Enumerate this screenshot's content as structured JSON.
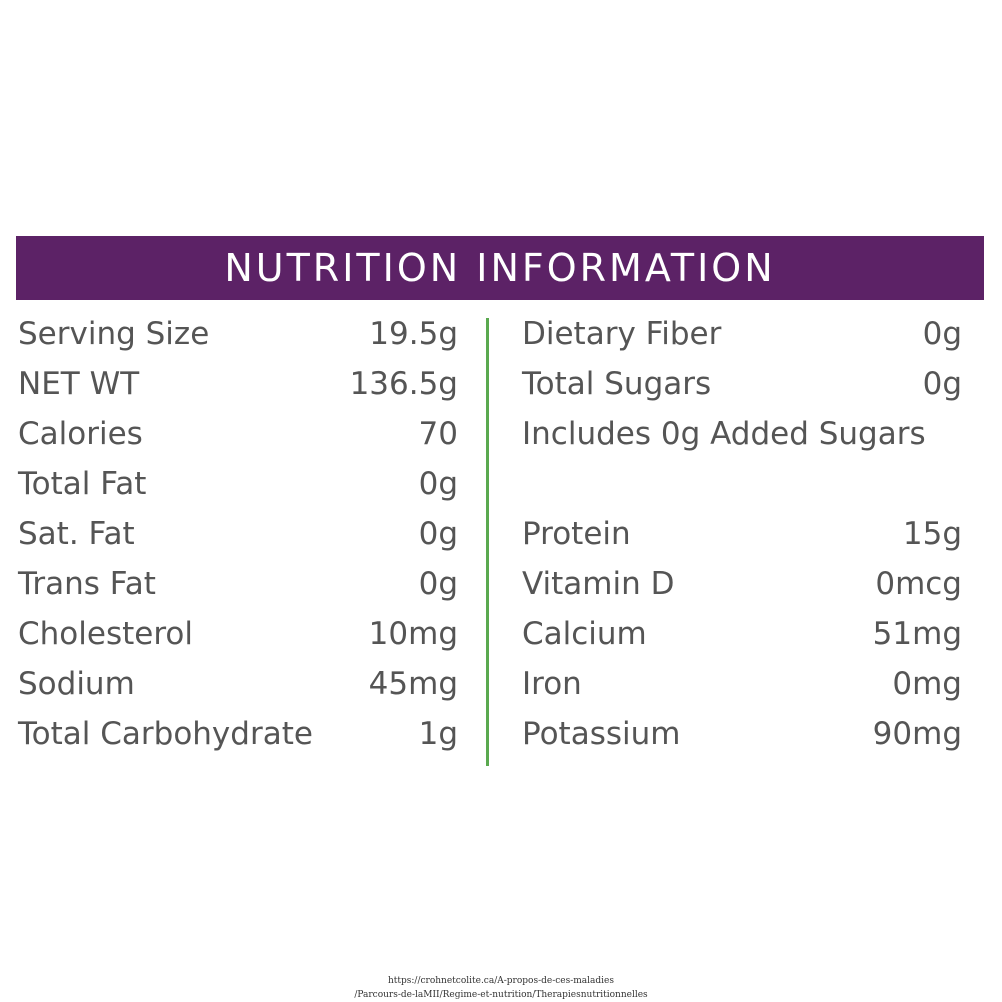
{
  "header": {
    "title": "NUTRITION INFORMATION",
    "background_color": "#5c2266",
    "divider_color": "#5aa94f"
  },
  "left_rows": [
    {
      "label": "Serving Size",
      "value": "19.5g"
    },
    {
      "label": "NET WT",
      "value": "136.5g"
    },
    {
      "label": "Calories",
      "value": "70"
    },
    {
      "label": "Total Fat",
      "value": "0g"
    },
    {
      "label": "Sat. Fat",
      "value": "0g"
    },
    {
      "label": "Trans Fat",
      "value": "0g"
    },
    {
      "label": "Cholesterol",
      "value": "10mg"
    },
    {
      "label": "Sodium",
      "value": "45mg"
    },
    {
      "label": "Total Carbohydrate",
      "value": "1g"
    }
  ],
  "right_rows": [
    {
      "label": "Dietary Fiber",
      "value": "0g"
    },
    {
      "label": "Total Sugars",
      "value": "0g"
    },
    {
      "label": "Includes 0g Added Sugars",
      "value": ""
    },
    {
      "label": "",
      "value": ""
    },
    {
      "label": "Protein",
      "value": "15g"
    },
    {
      "label": "Vitamin D",
      "value": "0mcg"
    },
    {
      "label": "Calcium",
      "value": "51mg"
    },
    {
      "label": "Iron",
      "value": "0mg"
    },
    {
      "label": "Potassium",
      "value": "90mg"
    }
  ],
  "footer": {
    "line1": "https://crohnetcolite.ca/A-propos-de-ces-maladies",
    "line2": "/Parcours-de-laMII/Regime-et-nutrition/Therapiesnutritionnelles"
  }
}
